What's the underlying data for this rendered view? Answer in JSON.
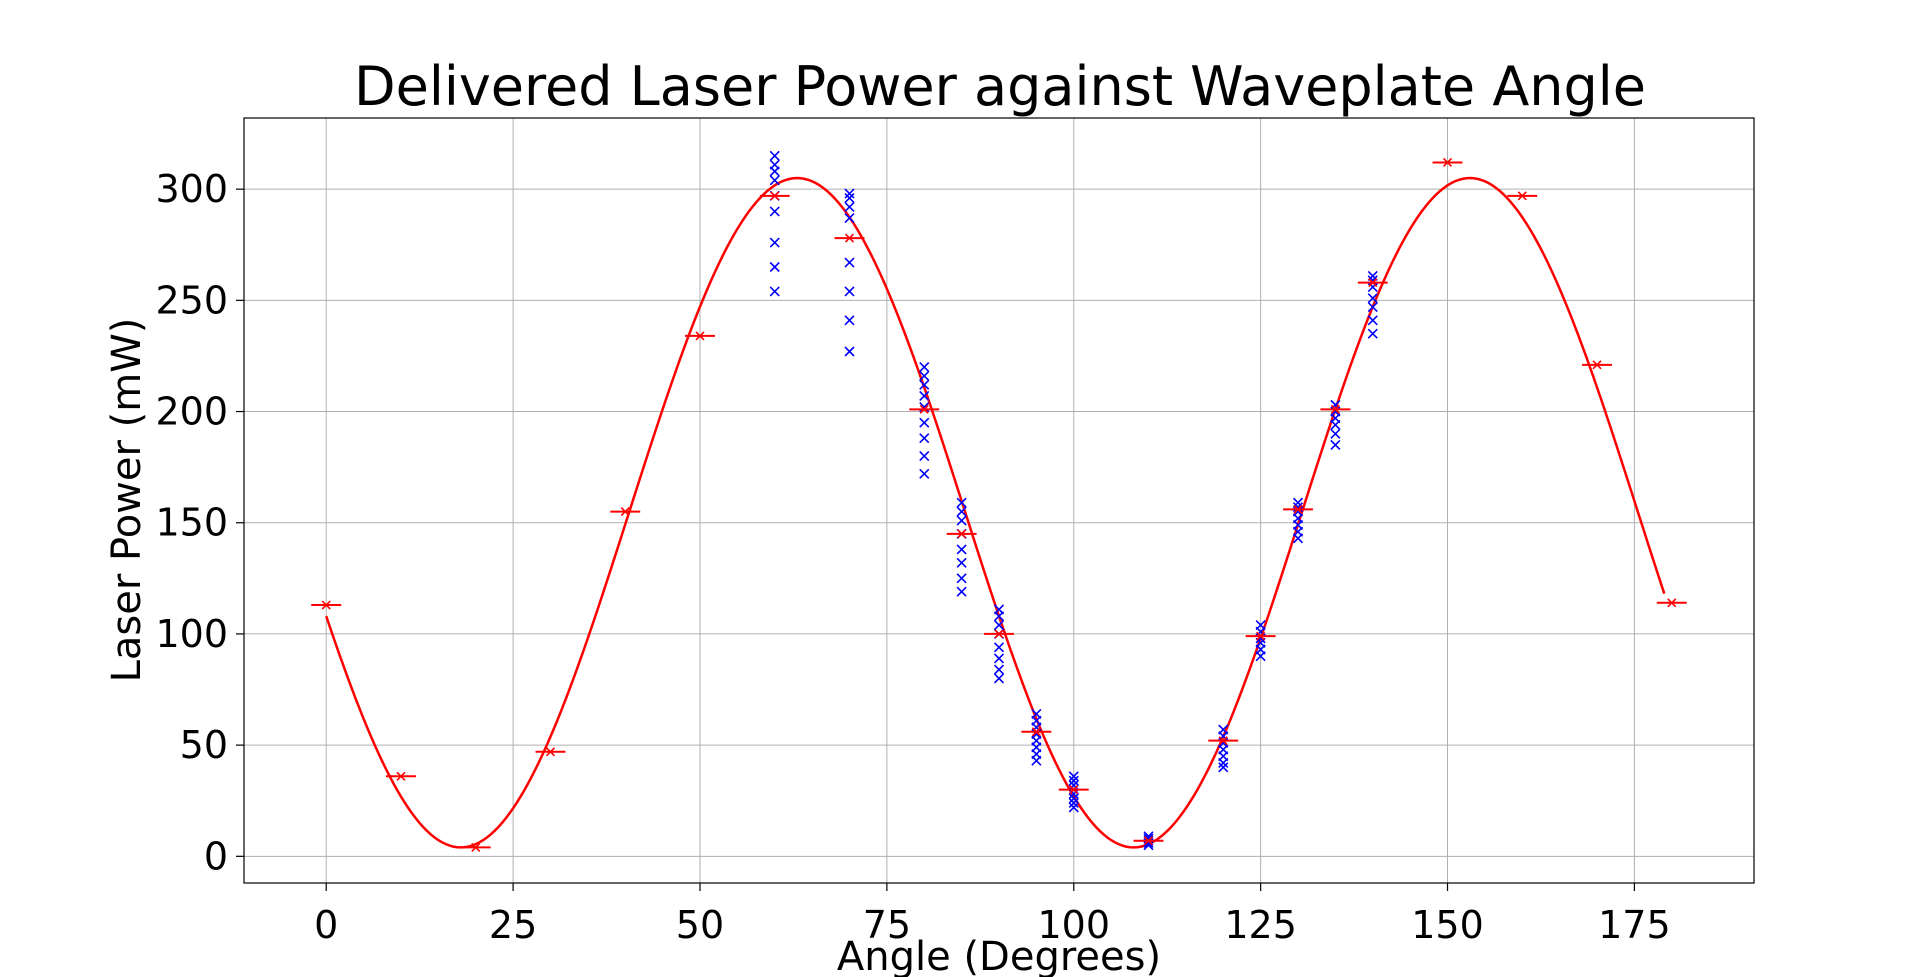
{
  "chart_data": {
    "type": "scatter",
    "title": "Delivered Laser Power against Waveplate Angle",
    "xlabel": "Angle (Degrees)",
    "ylabel": "Laser Power (mW)",
    "xlim": [
      -11,
      191
    ],
    "ylim": [
      -12,
      332
    ],
    "xticks": [
      0,
      25,
      50,
      75,
      100,
      125,
      150,
      175
    ],
    "yticks": [
      0,
      50,
      100,
      150,
      200,
      250,
      300
    ],
    "grid": true,
    "colors": {
      "averages": "#ff0000",
      "fit": "#ff0000",
      "raw": "#0000ff"
    },
    "averages": {
      "marker": "x",
      "xerr": 2,
      "points": [
        [
          0,
          113
        ],
        [
          10,
          36
        ],
        [
          20,
          4
        ],
        [
          30,
          47
        ],
        [
          40,
          155
        ],
        [
          50,
          234
        ],
        [
          60,
          297
        ],
        [
          70,
          278
        ],
        [
          80,
          201
        ],
        [
          85,
          145
        ],
        [
          90,
          100
        ],
        [
          95,
          56
        ],
        [
          100,
          30
        ],
        [
          110,
          7
        ],
        [
          120,
          52
        ],
        [
          125,
          99
        ],
        [
          130,
          156
        ],
        [
          135,
          201
        ],
        [
          140,
          258
        ],
        [
          150,
          312
        ],
        [
          160,
          297
        ],
        [
          170,
          221
        ],
        [
          180,
          114
        ]
      ]
    },
    "fit": {
      "type": "line",
      "form": "A*sin(2*pi*(x - phase)/period) + C",
      "amplitude": 150.5,
      "offset": 154.5,
      "period": 90,
      "phase": 40.5,
      "x_range": [
        0,
        179
      ]
    },
    "raw_points": {
      "marker": "x",
      "points": [
        [
          60,
          315
        ],
        [
          60,
          311
        ],
        [
          60,
          308
        ],
        [
          60,
          304
        ],
        [
          60,
          297
        ],
        [
          60,
          290
        ],
        [
          60,
          276
        ],
        [
          60,
          265
        ],
        [
          60,
          254
        ],
        [
          70,
          298
        ],
        [
          70,
          296
        ],
        [
          70,
          292
        ],
        [
          70,
          287
        ],
        [
          70,
          267
        ],
        [
          70,
          254
        ],
        [
          70,
          241
        ],
        [
          70,
          227
        ],
        [
          80,
          220
        ],
        [
          80,
          216
        ],
        [
          80,
          212
        ],
        [
          80,
          207
        ],
        [
          80,
          202
        ],
        [
          80,
          195
        ],
        [
          80,
          188
        ],
        [
          80,
          180
        ],
        [
          80,
          172
        ],
        [
          85,
          159
        ],
        [
          85,
          155
        ],
        [
          85,
          151
        ],
        [
          85,
          145
        ],
        [
          85,
          138
        ],
        [
          85,
          132
        ],
        [
          85,
          125
        ],
        [
          85,
          119
        ],
        [
          90,
          111
        ],
        [
          90,
          108
        ],
        [
          90,
          104
        ],
        [
          90,
          100
        ],
        [
          90,
          94
        ],
        [
          90,
          89
        ],
        [
          90,
          84
        ],
        [
          90,
          80
        ],
        [
          95,
          64
        ],
        [
          95,
          61
        ],
        [
          95,
          58
        ],
        [
          95,
          55
        ],
        [
          95,
          52
        ],
        [
          95,
          49
        ],
        [
          95,
          46
        ],
        [
          95,
          43
        ],
        [
          100,
          36
        ],
        [
          100,
          34
        ],
        [
          100,
          32
        ],
        [
          100,
          30
        ],
        [
          100,
          28
        ],
        [
          100,
          26
        ],
        [
          100,
          24
        ],
        [
          100,
          22
        ],
        [
          110,
          9
        ],
        [
          110,
          8
        ],
        [
          110,
          7
        ],
        [
          110,
          6
        ],
        [
          110,
          5
        ],
        [
          120,
          57
        ],
        [
          120,
          54
        ],
        [
          120,
          51
        ],
        [
          120,
          48
        ],
        [
          120,
          45
        ],
        [
          120,
          42
        ],
        [
          120,
          40
        ],
        [
          125,
          104
        ],
        [
          125,
          101
        ],
        [
          125,
          98
        ],
        [
          125,
          96
        ],
        [
          125,
          93
        ],
        [
          125,
          90
        ],
        [
          130,
          159
        ],
        [
          130,
          157
        ],
        [
          130,
          155
        ],
        [
          130,
          152
        ],
        [
          130,
          149
        ],
        [
          130,
          146
        ],
        [
          130,
          143
        ],
        [
          135,
          203
        ],
        [
          135,
          200
        ],
        [
          135,
          197
        ],
        [
          135,
          194
        ],
        [
          135,
          190
        ],
        [
          135,
          185
        ],
        [
          140,
          261
        ],
        [
          140,
          259
        ],
        [
          140,
          256
        ],
        [
          140,
          251
        ],
        [
          140,
          247
        ],
        [
          140,
          241
        ],
        [
          140,
          235
        ]
      ]
    }
  }
}
